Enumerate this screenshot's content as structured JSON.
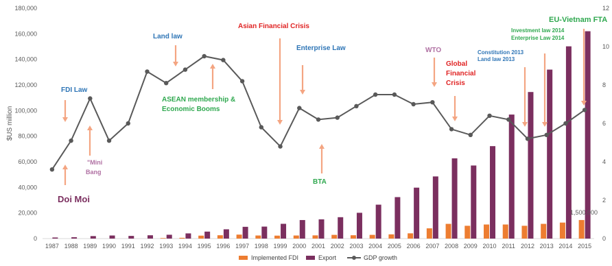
{
  "chart_data": {
    "type": "bar",
    "title": "",
    "categories": [
      "1987",
      "1988",
      "1989",
      "1990",
      "1991",
      "1992",
      "1993",
      "1994",
      "1995",
      "1996",
      "1997",
      "1998",
      "1999",
      "2000",
      "2001",
      "2002",
      "2003",
      "2004",
      "2005",
      "2006",
      "2007",
      "2008",
      "2009",
      "2010",
      "2011",
      "2012",
      "2013",
      "2014",
      "2015"
    ],
    "ylabel": "$US million",
    "ylim": [
      0,
      180000
    ],
    "yticks": [
      "0",
      "20,000",
      "40,000",
      "60,000",
      "80,000",
      "100,000",
      "120,000",
      "140,000",
      "160,000",
      "180,000"
    ],
    "y2lim": [
      0,
      12
    ],
    "y2ticks": [
      "0",
      "2",
      "4",
      "6",
      "8",
      "10",
      "12"
    ],
    "series": [
      {
        "name": "Implemented FDI",
        "axis": "left",
        "color": "#ed7d31",
        "values": [
          0,
          0,
          0,
          0,
          0,
          0,
          400,
          600,
          2300,
          2600,
          3100,
          2400,
          2300,
          2400,
          2500,
          2900,
          2600,
          2900,
          3300,
          4100,
          8000,
          11500,
          10000,
          11000,
          11000,
          10000,
          11500,
          12500,
          14500
        ]
      },
      {
        "name": "Export",
        "axis": "left",
        "color": "#7b2f5f",
        "values": [
          850,
          1040,
          1950,
          2400,
          2090,
          2580,
          2990,
          4050,
          5450,
          7250,
          9190,
          9360,
          11540,
          14480,
          15030,
          16710,
          20150,
          26500,
          32400,
          39800,
          48560,
          62690,
          57100,
          72240,
          96910,
          114530,
          132030,
          150220,
          162020
        ]
      },
      {
        "name": "GDP growth",
        "axis": "right",
        "color": "#595959",
        "values": [
          3.6,
          5.1,
          7.3,
          5.1,
          6.0,
          8.7,
          8.1,
          8.8,
          9.5,
          9.3,
          8.2,
          5.8,
          4.8,
          6.8,
          6.2,
          6.3,
          6.9,
          7.5,
          7.5,
          7.0,
          7.1,
          5.7,
          5.4,
          6.4,
          6.2,
          5.2,
          5.4,
          6.0,
          6.7
        ]
      }
    ],
    "annotations": [
      {
        "text": "Doi Moi",
        "color": "#7b2f5f"
      },
      {
        "text": "\"Mini",
        "color": "#b071a3"
      },
      {
        "text": "Bang",
        "color": "#b071a3"
      },
      {
        "text": "FDI Law",
        "color": "#2e75b6"
      },
      {
        "text": "Land law",
        "color": "#2e75b6"
      },
      {
        "text": "ASEAN membership &",
        "color": "#2fa84f"
      },
      {
        "text": "Economic Booms",
        "color": "#2fa84f"
      },
      {
        "text": "Asian Financial Crisis",
        "color": "#e02424"
      },
      {
        "text": "Enterprise Law",
        "color": "#2e75b6"
      },
      {
        "text": "BTA",
        "color": "#2fa84f"
      },
      {
        "text": "WTO",
        "color": "#b071a3"
      },
      {
        "text": "Global",
        "color": "#e02424"
      },
      {
        "text": "Financial",
        "color": "#e02424"
      },
      {
        "text": "Crisis",
        "color": "#e02424"
      },
      {
        "text": "Constitution 2013",
        "color": "#2e75b6"
      },
      {
        "text": "Land law 2013",
        "color": "#2e75b6"
      },
      {
        "text": "Investment law 2014",
        "color": "#2fa84f"
      },
      {
        "text": "Enterprise Law 2014",
        "color": "#2fa84f"
      },
      {
        "text": "EU-Vietnam FTA",
        "color": "#2fa84f"
      },
      {
        "text": "1,500,000",
        "color": "#7f7f7f"
      }
    ],
    "arrow_color": "#f4a582",
    "legend_position": "bottom",
    "grid": false
  }
}
